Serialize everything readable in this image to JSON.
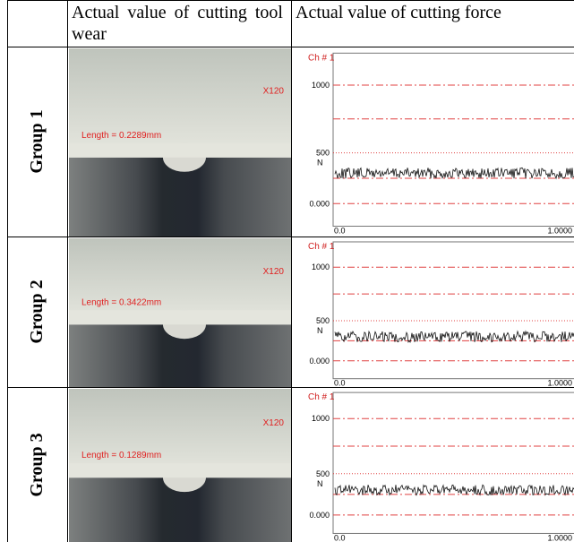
{
  "table": {
    "header": {
      "wear": "Actual value of cutting tool wear",
      "force": "Actual value of cutting force"
    },
    "rows": [
      {
        "group": "Group 1",
        "image": {
          "length": "Length = 0.2289mm",
          "magnification": "X120"
        },
        "chart": {
          "channel": "Ch # 1",
          "yticks": [
            "1000",
            "500",
            "0.000"
          ],
          "unit": "N",
          "xticks": [
            "0.0",
            "1.0000"
          ]
        }
      },
      {
        "group": "Group 2",
        "image": {
          "length": "Length = 0.3422mm",
          "magnification": "X120"
        },
        "chart": {
          "channel": "Ch # 1",
          "yticks": [
            "1000",
            "500",
            "0.000"
          ],
          "unit": "N",
          "xticks": [
            "0.0",
            "1.0000"
          ]
        }
      },
      {
        "group": "Group 3",
        "image": {
          "length": "Length = 0.1289mm",
          "magnification": "X120"
        },
        "chart": {
          "channel": "Ch # 1",
          "yticks": [
            "1000",
            "500",
            "0.000"
          ],
          "unit": "N",
          "xticks": [
            "0.0",
            "1.0000"
          ]
        }
      }
    ]
  }
}
